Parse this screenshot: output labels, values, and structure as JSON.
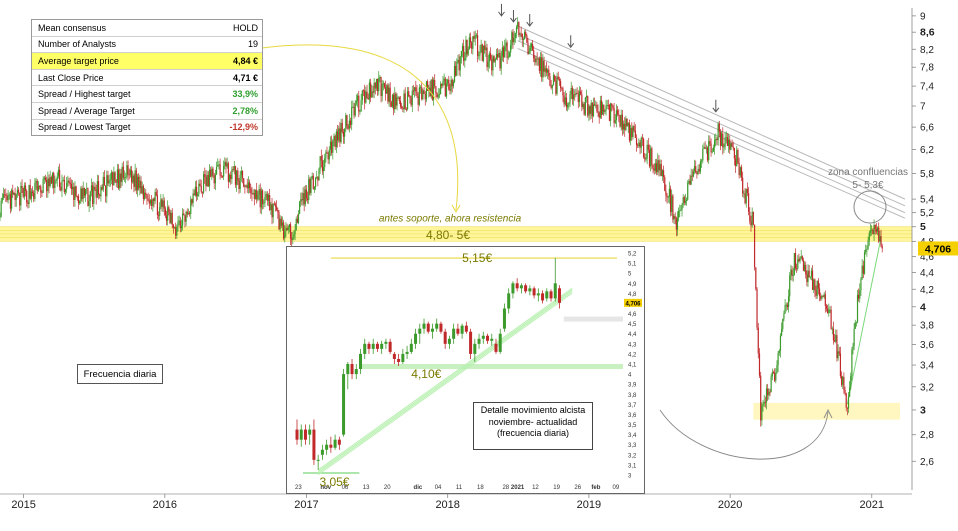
{
  "consensus_table": {
    "rows": [
      {
        "label": "Mean consensus",
        "value": "HOLD",
        "color": "#000000",
        "highlight": false
      },
      {
        "label": "Number of Analysts",
        "value": "19",
        "color": "#000000",
        "highlight": false
      },
      {
        "label": "Average target price",
        "value": "4,84 €",
        "color": "#000000",
        "highlight": true
      },
      {
        "label": "Last Close Price",
        "value": "4,71 €",
        "color": "#000000",
        "highlight": false
      },
      {
        "label": "Spread / Highest target",
        "value": "33,9%",
        "color": "#2e9e2e",
        "highlight": false
      },
      {
        "label": "Spread / Average Target",
        "value": "2,78%",
        "color": "#2e9e2e",
        "highlight": false
      },
      {
        "label": "Spread / Lowest Target",
        "value": "-12,9%",
        "color": "#c0392b",
        "highlight": false
      }
    ]
  },
  "frequency_label": "Frecuencia diaria",
  "detail_label": "Detalle movimiento alcista noviembre- actualidad (frecuencia diaria)",
  "colors": {
    "up": "#3a9a2a",
    "down": "#c0282a",
    "resistance_band": "#fff38a",
    "support_band": "#c8f0c0",
    "trendline": "#b8f0b0",
    "label_text": "#7a7a00",
    "price_badge": "#f5d000"
  },
  "chart_data": [
    {
      "type": "candlestick",
      "frequency": "Frecuencia diaria",
      "x_tick_labels": [
        "2015",
        "2016",
        "2017",
        "2018",
        "2019",
        "2020",
        "2021"
      ],
      "y_tick_labels": [
        "9",
        "8,6",
        "8,2",
        "7,8",
        "7,4",
        "7",
        "6,6",
        "6,2",
        "5,8",
        "5,4",
        "5,2",
        "5",
        "4,8",
        "4,6",
        "4,4",
        "4,2",
        "4",
        "3,8",
        "3,6",
        "3,4",
        "3,2",
        "3",
        "2,8",
        "2,6"
      ],
      "y_scale": "log",
      "ylim": [
        2.4,
        9.2
      ],
      "last_price_label": "4,706",
      "last_price": 4.706,
      "close_path": [
        {
          "date": "2014-11-01",
          "close": 5.3
        },
        {
          "date": "2015-01-15",
          "close": 5.5
        },
        {
          "date": "2015-04-01",
          "close": 5.7
        },
        {
          "date": "2015-06-01",
          "close": 5.4
        },
        {
          "date": "2015-08-01",
          "close": 5.6
        },
        {
          "date": "2015-10-01",
          "close": 5.8
        },
        {
          "date": "2015-12-01",
          "close": 5.4
        },
        {
          "date": "2016-02-01",
          "close": 5.0
        },
        {
          "date": "2016-04-01",
          "close": 5.6
        },
        {
          "date": "2016-06-01",
          "close": 5.9
        },
        {
          "date": "2016-08-01",
          "close": 5.6
        },
        {
          "date": "2016-10-01",
          "close": 5.3
        },
        {
          "date": "2016-11-15",
          "close": 4.85
        },
        {
          "date": "2017-01-01",
          "close": 5.5
        },
        {
          "date": "2017-03-01",
          "close": 6.2
        },
        {
          "date": "2017-05-01",
          "close": 6.9
        },
        {
          "date": "2017-07-01",
          "close": 7.5
        },
        {
          "date": "2017-09-01",
          "close": 7.0
        },
        {
          "date": "2017-11-01",
          "close": 7.3
        },
        {
          "date": "2018-01-01",
          "close": 7.4
        },
        {
          "date": "2018-03-01",
          "close": 8.5
        },
        {
          "date": "2018-05-01",
          "close": 7.8
        },
        {
          "date": "2018-07-01",
          "close": 8.6
        },
        {
          "date": "2018-09-01",
          "close": 7.8
        },
        {
          "date": "2018-11-01",
          "close": 7.2
        },
        {
          "date": "2019-01-01",
          "close": 7.0
        },
        {
          "date": "2019-03-01",
          "close": 6.9
        },
        {
          "date": "2019-05-01",
          "close": 6.4
        },
        {
          "date": "2019-07-01",
          "close": 5.9
        },
        {
          "date": "2019-08-15",
          "close": 5.1
        },
        {
          "date": "2019-10-01",
          "close": 5.8
        },
        {
          "date": "2019-12-01",
          "close": 6.5
        },
        {
          "date": "2020-01-15",
          "close": 6.1
        },
        {
          "date": "2020-03-01",
          "close": 5.0
        },
        {
          "date": "2020-03-20",
          "close": 3.0
        },
        {
          "date": "2020-05-01",
          "close": 3.4
        },
        {
          "date": "2020-06-15",
          "close": 4.6
        },
        {
          "date": "2020-08-01",
          "close": 4.3
        },
        {
          "date": "2020-09-15",
          "close": 3.9
        },
        {
          "date": "2020-10-30",
          "close": 3.05
        },
        {
          "date": "2020-12-01",
          "close": 4.3
        },
        {
          "date": "2021-01-10",
          "close": 5.1
        },
        {
          "date": "2021-01-28",
          "close": 4.706
        }
      ],
      "annotations": [
        {
          "text": "antes soporte, ahora resistencia"
        },
        {
          "text": "4,80- 5€",
          "range": [
            4.8,
            5.0
          ]
        },
        {
          "text": "zona confluencias"
        },
        {
          "text": "5- 5,3€",
          "range": [
            5.0,
            5.3
          ]
        }
      ]
    },
    {
      "type": "candlestick",
      "frequency": "frecuencia diaria",
      "x_tick_labels": [
        "23",
        "nov",
        "06",
        "13",
        "20",
        "dic",
        "04",
        "11",
        "18",
        "28",
        "2021",
        "12",
        "19",
        "26",
        "feb",
        "09"
      ],
      "y_tick_labels": [
        "5,2",
        "5,1",
        "5",
        "4,9",
        "4,8",
        "4,7",
        "4,6",
        "4,5",
        "4,4",
        "4,3",
        "4,2",
        "4,1",
        "4",
        "3,9",
        "3,8",
        "3,7",
        "3,6",
        "3,5",
        "3,4",
        "3,3",
        "3,2",
        "3,1",
        "3"
      ],
      "ylim": [
        2.98,
        5.22
      ],
      "last_price_label": "4,706",
      "last_price": 4.706,
      "candles": [
        {
          "date": "2020-10-23",
          "open": 3.45,
          "high": 3.55,
          "low": 3.3,
          "close": 3.35
        },
        {
          "date": "2020-10-26",
          "open": 3.35,
          "high": 3.5,
          "low": 3.28,
          "close": 3.45
        },
        {
          "date": "2020-10-27",
          "open": 3.45,
          "high": 3.5,
          "low": 3.3,
          "close": 3.35
        },
        {
          "date": "2020-10-28",
          "open": 3.4,
          "high": 3.5,
          "low": 3.3,
          "close": 3.45
        },
        {
          "date": "2020-10-29",
          "open": 3.45,
          "high": 3.55,
          "low": 3.1,
          "close": 3.15
        },
        {
          "date": "2020-10-30",
          "open": 3.15,
          "high": 3.2,
          "low": 3.05,
          "close": 3.15
        },
        {
          "date": "2020-11-02",
          "open": 3.2,
          "high": 3.3,
          "low": 3.15,
          "close": 3.25
        },
        {
          "date": "2020-11-03",
          "open": 3.25,
          "high": 3.35,
          "low": 3.2,
          "close": 3.3
        },
        {
          "date": "2020-11-04",
          "open": 3.3,
          "high": 3.38,
          "low": 3.22,
          "close": 3.27
        },
        {
          "date": "2020-11-05",
          "open": 3.27,
          "high": 3.4,
          "low": 3.25,
          "close": 3.35
        },
        {
          "date": "2020-11-06",
          "open": 3.35,
          "high": 3.38,
          "low": 3.25,
          "close": 3.3
        },
        {
          "date": "2020-11-09",
          "open": 3.4,
          "high": 4.05,
          "low": 3.38,
          "close": 4.0
        },
        {
          "date": "2020-11-10",
          "open": 4.0,
          "high": 4.12,
          "low": 3.85,
          "close": 4.1
        },
        {
          "date": "2020-11-11",
          "open": 4.1,
          "high": 4.15,
          "low": 3.95,
          "close": 4.0
        },
        {
          "date": "2020-11-12",
          "open": 4.0,
          "high": 4.1,
          "low": 3.95,
          "close": 4.05
        },
        {
          "date": "2020-11-13",
          "open": 4.05,
          "high": 4.25,
          "low": 4.0,
          "close": 4.2
        },
        {
          "date": "2020-11-16",
          "open": 4.2,
          "high": 4.35,
          "low": 4.15,
          "close": 4.3
        },
        {
          "date": "2020-11-17",
          "open": 4.3,
          "high": 4.32,
          "low": 4.2,
          "close": 4.25
        },
        {
          "date": "2020-11-18",
          "open": 4.25,
          "high": 4.35,
          "low": 4.2,
          "close": 4.3
        },
        {
          "date": "2020-11-19",
          "open": 4.3,
          "high": 4.32,
          "low": 4.22,
          "close": 4.25
        },
        {
          "date": "2020-11-20",
          "open": 4.25,
          "high": 4.33,
          "low": 4.2,
          "close": 4.3
        },
        {
          "date": "2020-11-23",
          "open": 4.3,
          "high": 4.35,
          "low": 4.25,
          "close": 4.32
        },
        {
          "date": "2020-11-24",
          "open": 4.32,
          "high": 4.35,
          "low": 4.2,
          "close": 4.22
        },
        {
          "date": "2020-11-25",
          "open": 4.2,
          "high": 4.22,
          "low": 4.1,
          "close": 4.15
        },
        {
          "date": "2020-11-26",
          "open": 4.15,
          "high": 4.2,
          "low": 4.08,
          "close": 4.12
        },
        {
          "date": "2020-11-27",
          "open": 4.12,
          "high": 4.25,
          "low": 4.1,
          "close": 4.2
        },
        {
          "date": "2020-11-30",
          "open": 4.2,
          "high": 4.28,
          "low": 4.15,
          "close": 4.22
        },
        {
          "date": "2020-12-01",
          "open": 4.22,
          "high": 4.35,
          "low": 4.2,
          "close": 4.3
        },
        {
          "date": "2020-12-02",
          "open": 4.3,
          "high": 4.45,
          "low": 4.25,
          "close": 4.4
        },
        {
          "date": "2020-12-03",
          "open": 4.4,
          "high": 4.5,
          "low": 4.3,
          "close": 4.45
        },
        {
          "date": "2020-12-04",
          "open": 4.45,
          "high": 4.55,
          "low": 4.4,
          "close": 4.5
        },
        {
          "date": "2020-12-07",
          "open": 4.5,
          "high": 4.52,
          "low": 4.4,
          "close": 4.42
        },
        {
          "date": "2020-12-08",
          "open": 4.42,
          "high": 4.5,
          "low": 4.35,
          "close": 4.45
        },
        {
          "date": "2020-12-09",
          "open": 4.45,
          "high": 4.55,
          "low": 4.42,
          "close": 4.5
        },
        {
          "date": "2020-12-10",
          "open": 4.5,
          "high": 4.52,
          "low": 4.4,
          "close": 4.42
        },
        {
          "date": "2020-12-11",
          "open": 4.42,
          "high": 4.45,
          "low": 4.25,
          "close": 4.3
        },
        {
          "date": "2020-12-14",
          "open": 4.3,
          "high": 4.38,
          "low": 4.25,
          "close": 4.35
        },
        {
          "date": "2020-12-15",
          "open": 4.35,
          "high": 4.5,
          "low": 4.3,
          "close": 4.45
        },
        {
          "date": "2020-12-16",
          "open": 4.45,
          "high": 4.5,
          "low": 4.38,
          "close": 4.4
        },
        {
          "date": "2020-12-17",
          "open": 4.4,
          "high": 4.5,
          "low": 4.35,
          "close": 4.48
        },
        {
          "date": "2020-12-18",
          "open": 4.48,
          "high": 4.52,
          "low": 4.4,
          "close": 4.42
        },
        {
          "date": "2020-12-21",
          "open": 4.42,
          "high": 4.45,
          "low": 4.15,
          "close": 4.2
        },
        {
          "date": "2020-12-22",
          "open": 4.2,
          "high": 4.35,
          "low": 4.12,
          "close": 4.3
        },
        {
          "date": "2020-12-23",
          "open": 4.3,
          "high": 4.4,
          "low": 4.25,
          "close": 4.35
        },
        {
          "date": "2020-12-28",
          "open": 4.35,
          "high": 4.42,
          "low": 4.3,
          "close": 4.38
        },
        {
          "date": "2020-12-29",
          "open": 4.38,
          "high": 4.4,
          "low": 4.3,
          "close": 4.33
        },
        {
          "date": "2020-12-30",
          "open": 4.33,
          "high": 4.4,
          "low": 4.28,
          "close": 4.35
        },
        {
          "date": "2021-01-04",
          "open": 4.3,
          "high": 4.35,
          "low": 4.2,
          "close": 4.22
        },
        {
          "date": "2021-01-05",
          "open": 4.22,
          "high": 4.45,
          "low": 4.2,
          "close": 4.4
        },
        {
          "date": "2021-01-06",
          "open": 4.45,
          "high": 4.7,
          "low": 4.42,
          "close": 4.65
        },
        {
          "date": "2021-01-07",
          "open": 4.65,
          "high": 4.85,
          "low": 4.6,
          "close": 4.8
        },
        {
          "date": "2021-01-08",
          "open": 4.8,
          "high": 4.92,
          "low": 4.75,
          "close": 4.9
        },
        {
          "date": "2021-01-11",
          "open": 4.9,
          "high": 4.95,
          "low": 4.82,
          "close": 4.85
        },
        {
          "date": "2021-01-12",
          "open": 4.85,
          "high": 4.9,
          "low": 4.8,
          "close": 4.88
        },
        {
          "date": "2021-01-13",
          "open": 4.88,
          "high": 4.9,
          "low": 4.8,
          "close": 4.82
        },
        {
          "date": "2021-01-14",
          "open": 4.82,
          "high": 4.88,
          "low": 4.78,
          "close": 4.85
        },
        {
          "date": "2021-01-15",
          "open": 4.85,
          "high": 4.87,
          "low": 4.75,
          "close": 4.78
        },
        {
          "date": "2021-01-18",
          "open": 4.78,
          "high": 4.85,
          "low": 4.72,
          "close": 4.8
        },
        {
          "date": "2021-01-19",
          "open": 4.8,
          "high": 4.83,
          "low": 4.7,
          "close": 4.73
        },
        {
          "date": "2021-01-20",
          "open": 4.75,
          "high": 4.85,
          "low": 4.72,
          "close": 4.82
        },
        {
          "date": "2021-01-21",
          "open": 4.82,
          "high": 4.84,
          "low": 4.72,
          "close": 4.75
        },
        {
          "date": "2021-01-22",
          "open": 4.75,
          "high": 5.15,
          "low": 4.72,
          "close": 4.9
        },
        {
          "date": "2021-01-25",
          "open": 4.85,
          "high": 4.88,
          "low": 4.65,
          "close": 4.706
        }
      ],
      "annotations": [
        {
          "text": "5,15€",
          "value": 5.15
        },
        {
          "text": "4,10€",
          "value": 4.1
        },
        {
          "text": "3,05€",
          "value": 3.05
        }
      ]
    }
  ]
}
